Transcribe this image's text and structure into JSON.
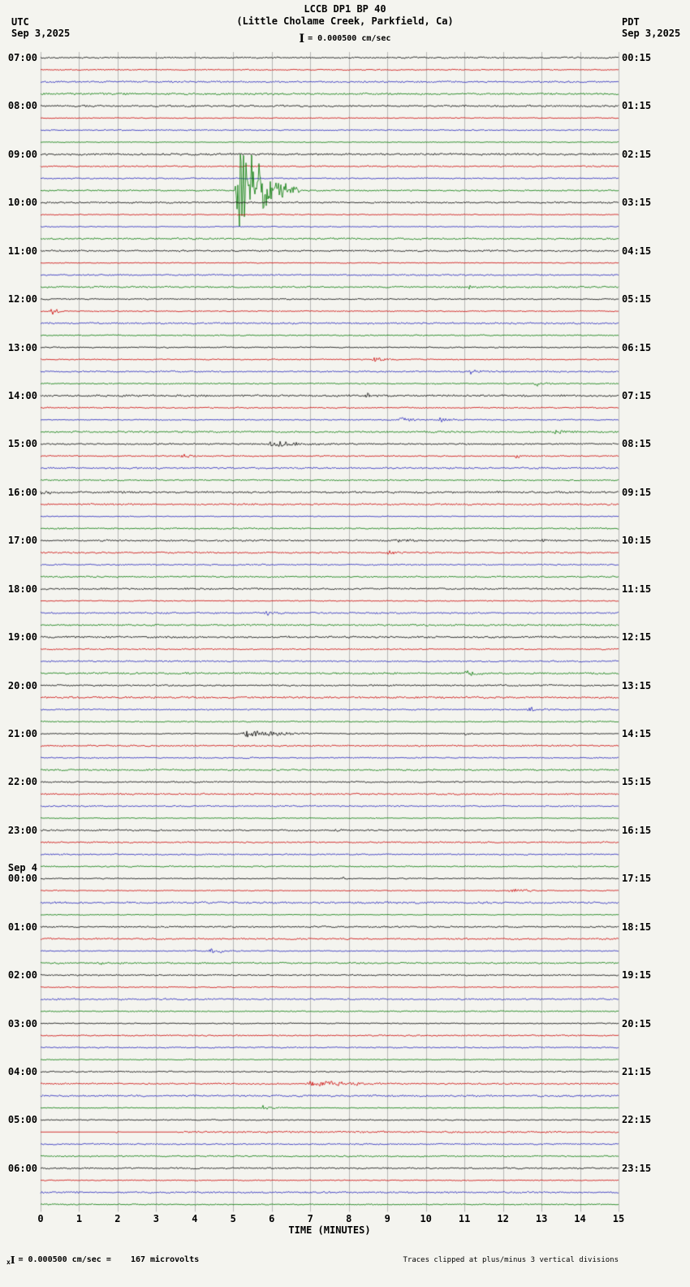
{
  "header": {
    "title": "LCCB DP1 BP 40",
    "subtitle": "(Little Cholame Creek, Parkfield, Ca)",
    "left_tz": "UTC",
    "left_date": "Sep 3,2025",
    "right_tz": "PDT",
    "right_date": "Sep 3,2025",
    "scale_bracket": "I",
    "scale_label": "= 0.000500 cm/sec"
  },
  "footer": {
    "prefix": "x",
    "bracket": "I",
    "scale_label": "= 0.000500 cm/sec =",
    "microvolts": "167 microvolts",
    "clip_note": "Traces clipped at plus/minus 3 vertical divisions"
  },
  "xaxis": {
    "title": "TIME (MINUTES)",
    "ticks": [
      "0",
      "1",
      "2",
      "3",
      "4",
      "5",
      "6",
      "7",
      "8",
      "9",
      "10",
      "11",
      "12",
      "13",
      "14",
      "15"
    ]
  },
  "chart_data": {
    "type": "line",
    "variant": "seismogram_helicorder",
    "station": "LCCB DP1 BP 40",
    "location": "Little Cholame Creek, Parkfield, Ca",
    "start_utc": "07:00 Sep 3,2025",
    "minutes_per_row": 15,
    "rows": 96,
    "x_range_minutes": [
      0,
      15
    ],
    "clip_divisions": 3,
    "scale_cm_per_sec": 0.0005,
    "scale_microvolts": 167,
    "trace_color_cycle": [
      "#000000",
      "#cc0000",
      "#2222bb",
      "#007700"
    ],
    "grid_color": "#8f8f8f",
    "date_change": {
      "row": 68,
      "label": "Sep 4"
    },
    "utc_hour_labels": [
      {
        "row": 0,
        "label": "07:00"
      },
      {
        "row": 4,
        "label": "08:00"
      },
      {
        "row": 8,
        "label": "09:00"
      },
      {
        "row": 12,
        "label": "10:00"
      },
      {
        "row": 16,
        "label": "11:00"
      },
      {
        "row": 20,
        "label": "12:00"
      },
      {
        "row": 24,
        "label": "13:00"
      },
      {
        "row": 28,
        "label": "14:00"
      },
      {
        "row": 32,
        "label": "15:00"
      },
      {
        "row": 36,
        "label": "16:00"
      },
      {
        "row": 40,
        "label": "17:00"
      },
      {
        "row": 44,
        "label": "18:00"
      },
      {
        "row": 48,
        "label": "19:00"
      },
      {
        "row": 52,
        "label": "20:00"
      },
      {
        "row": 56,
        "label": "21:00"
      },
      {
        "row": 60,
        "label": "22:00"
      },
      {
        "row": 64,
        "label": "23:00"
      },
      {
        "row": 68,
        "label": "00:00"
      },
      {
        "row": 72,
        "label": "01:00"
      },
      {
        "row": 76,
        "label": "02:00"
      },
      {
        "row": 80,
        "label": "03:00"
      },
      {
        "row": 84,
        "label": "04:00"
      },
      {
        "row": 88,
        "label": "05:00"
      },
      {
        "row": 92,
        "label": "06:00"
      }
    ],
    "local_hour_labels": [
      {
        "row": 0,
        "label": "00:15"
      },
      {
        "row": 4,
        "label": "01:15"
      },
      {
        "row": 8,
        "label": "02:15"
      },
      {
        "row": 12,
        "label": "03:15"
      },
      {
        "row": 16,
        "label": "04:15"
      },
      {
        "row": 20,
        "label": "05:15"
      },
      {
        "row": 24,
        "label": "06:15"
      },
      {
        "row": 28,
        "label": "07:15"
      },
      {
        "row": 32,
        "label": "08:15"
      },
      {
        "row": 36,
        "label": "09:15"
      },
      {
        "row": 40,
        "label": "10:15"
      },
      {
        "row": 44,
        "label": "11:15"
      },
      {
        "row": 48,
        "label": "12:15"
      },
      {
        "row": 52,
        "label": "13:15"
      },
      {
        "row": 56,
        "label": "14:15"
      },
      {
        "row": 60,
        "label": "15:15"
      },
      {
        "row": 64,
        "label": "16:15"
      },
      {
        "row": 68,
        "label": "17:15"
      },
      {
        "row": 72,
        "label": "18:15"
      },
      {
        "row": 76,
        "label": "19:15"
      },
      {
        "row": 80,
        "label": "20:15"
      },
      {
        "row": 84,
        "label": "21:15"
      },
      {
        "row": 88,
        "label": "22:15"
      },
      {
        "row": 92,
        "label": "23:15"
      }
    ],
    "events": [
      {
        "utc": "09:45",
        "row": 11,
        "start_min": 5.05,
        "end_min": 6.7,
        "amp_div": 10.0,
        "clipped": true
      },
      {
        "utc": "11:45",
        "row": 19,
        "start_min": 11.1,
        "end_min": 11.5,
        "amp_div": 0.3
      },
      {
        "utc": "12:15",
        "row": 21,
        "start_min": 0.25,
        "end_min": 0.8,
        "amp_div": 0.45
      },
      {
        "utc": "13:15",
        "row": 25,
        "start_min": 8.6,
        "end_min": 9.4,
        "amp_div": 0.35
      },
      {
        "utc": "13:30",
        "row": 26,
        "start_min": 11.1,
        "end_min": 11.6,
        "amp_div": 0.35
      },
      {
        "utc": "13:45",
        "row": 27,
        "start_min": 12.8,
        "end_min": 13.3,
        "amp_div": 0.3
      },
      {
        "utc": "14:00",
        "row": 28,
        "start_min": 8.4,
        "end_min": 8.8,
        "amp_div": 0.5
      },
      {
        "utc": "14:30",
        "row": 30,
        "start_min": 9.2,
        "end_min": 10.1,
        "amp_div": 0.4
      },
      {
        "utc": "14:30",
        "row": 30,
        "start_min": 10.3,
        "end_min": 11.2,
        "amp_div": 0.35
      },
      {
        "utc": "14:45",
        "row": 31,
        "start_min": 13.3,
        "end_min": 13.9,
        "amp_div": 0.3
      },
      {
        "utc": "15:00",
        "row": 32,
        "start_min": 5.9,
        "end_min": 7.6,
        "amp_div": 0.55
      },
      {
        "utc": "15:00",
        "row": 32,
        "start_min": 5.95,
        "end_min": 6.15,
        "amp_div": 0.9
      },
      {
        "utc": "15:15",
        "row": 33,
        "start_min": 3.6,
        "end_min": 4.1,
        "amp_div": 0.35
      },
      {
        "utc": "15:15",
        "row": 33,
        "start_min": 12.3,
        "end_min": 12.8,
        "amp_div": 0.3
      },
      {
        "utc": "16:00",
        "row": 36,
        "start_min": 0.0,
        "end_min": 0.5,
        "amp_div": 0.45
      },
      {
        "utc": "17:00",
        "row": 40,
        "start_min": 9.2,
        "end_min": 9.9,
        "amp_div": 0.3
      },
      {
        "utc": "17:00",
        "row": 40,
        "start_min": 13.0,
        "end_min": 13.4,
        "amp_div": 0.22
      },
      {
        "utc": "17:15",
        "row": 41,
        "start_min": 9.0,
        "end_min": 9.4,
        "amp_div": 0.35
      },
      {
        "utc": "18:30",
        "row": 46,
        "start_min": 5.8,
        "end_min": 6.3,
        "amp_div": 0.28
      },
      {
        "utc": "19:45",
        "row": 51,
        "start_min": 11.0,
        "end_min": 11.5,
        "amp_div": 0.5
      },
      {
        "utc": "20:30",
        "row": 54,
        "start_min": 12.6,
        "end_min": 13.3,
        "amp_div": 0.35
      },
      {
        "utc": "21:00",
        "row": 56,
        "start_min": 5.2,
        "end_min": 7.3,
        "amp_div": 0.75
      },
      {
        "utc": "21:00",
        "row": 56,
        "start_min": 5.3,
        "end_min": 5.5,
        "amp_div": 1.1
      },
      {
        "utc": "21:00",
        "row": 56,
        "start_min": 11.0,
        "end_min": 11.4,
        "amp_div": 0.3
      },
      {
        "utc": "23:00",
        "row": 64,
        "start_min": 7.6,
        "end_min": 8.1,
        "amp_div": 0.22
      },
      {
        "utc": "00:00",
        "row": 68,
        "start_min": 7.8,
        "end_min": 8.3,
        "amp_div": 0.22
      },
      {
        "utc": "00:15",
        "row": 69,
        "start_min": 12.1,
        "end_min": 13.0,
        "amp_div": 0.42
      },
      {
        "utc": "01:30",
        "row": 74,
        "start_min": 4.3,
        "end_min": 5.3,
        "amp_div": 0.42
      },
      {
        "utc": "01:45",
        "row": 75,
        "start_min": 1.5,
        "end_min": 1.8,
        "amp_div": 0.3
      },
      {
        "utc": "01:45",
        "row": 75,
        "start_min": 9.2,
        "end_min": 9.5,
        "amp_div": 0.22
      },
      {
        "utc": "04:15",
        "row": 85,
        "start_min": 6.9,
        "end_min": 8.9,
        "amp_div": 0.6
      },
      {
        "utc": "04:15",
        "row": 85,
        "start_min": 7.0,
        "end_min": 7.3,
        "amp_div": 0.85
      },
      {
        "utc": "04:45",
        "row": 87,
        "start_min": 5.7,
        "end_min": 6.4,
        "amp_div": 0.42
      },
      {
        "utc": "05:15",
        "row": 89,
        "type": "gap",
        "start_min": 0.0,
        "end_min": 3.5
      },
      {
        "utc": "05:15",
        "row": 89,
        "start_min": 1.95,
        "end_min": 2.15,
        "amp_div": 0.25
      }
    ]
  }
}
